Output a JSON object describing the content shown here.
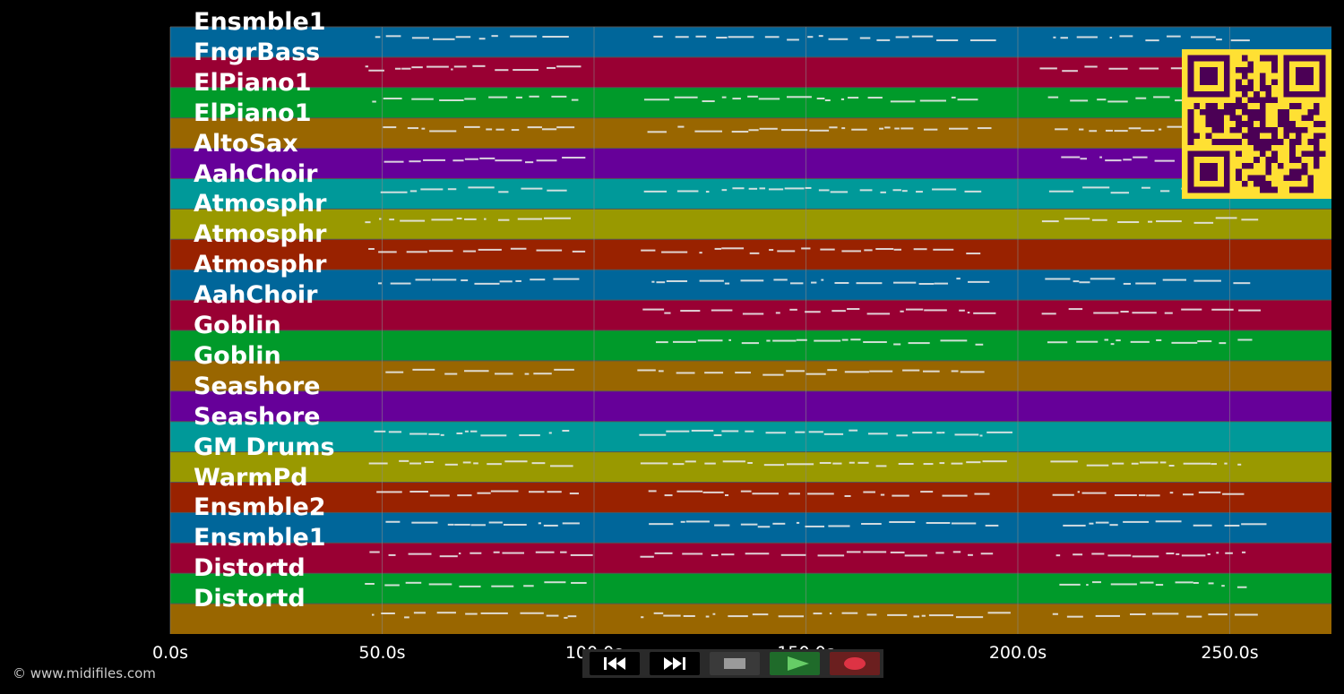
{
  "tracks": [
    {
      "name": "Ensmble1",
      "color": "#00669a"
    },
    {
      "name": "FngrBass",
      "color": "#990033"
    },
    {
      "name": "ElPiano1",
      "color": "#009a2a"
    },
    {
      "name": "ElPiano1",
      "color": "#996600"
    },
    {
      "name": "AltoSax",
      "color": "#660099"
    },
    {
      "name": "AahChoir",
      "color": "#009999"
    },
    {
      "name": "Atmosphr",
      "color": "#999900"
    },
    {
      "name": "Atmosphr",
      "color": "#992200"
    },
    {
      "name": "Atmosphr",
      "color": "#00669a"
    },
    {
      "name": "AahChoir",
      "color": "#990033"
    },
    {
      "name": "Goblin",
      "color": "#009a2a"
    },
    {
      "name": "Goblin",
      "color": "#996600"
    },
    {
      "name": "Seashore",
      "color": "#660099"
    },
    {
      "name": "Seashore",
      "color": "#009999"
    },
    {
      "name": "GM Drums",
      "color": "#999900"
    },
    {
      "name": "WarmPd",
      "color": "#992200"
    },
    {
      "name": "Ensmble2",
      "color": "#00669a"
    },
    {
      "name": "Ensmble1",
      "color": "#990033"
    },
    {
      "name": "Distortd",
      "color": "#009a2a"
    },
    {
      "name": "Distortd",
      "color": "#996600"
    }
  ],
  "ticks": [
    {
      "label": "0.0s",
      "value": 0
    },
    {
      "label": "50.0s",
      "value": 50
    },
    {
      "label": "100.0s",
      "value": 100
    },
    {
      "label": "150.0s",
      "value": 150
    },
    {
      "label": "200.0s",
      "value": 200
    },
    {
      "label": "250.0s",
      "value": 250
    }
  ],
  "duration_s": 274,
  "credit": "© www.midifiles.com",
  "controls": [
    {
      "name": "rewind-button",
      "icon": "rewind-icon",
      "bg": "#000000"
    },
    {
      "name": "fast-forward-button",
      "icon": "fast-forward-icon",
      "bg": "#000000"
    },
    {
      "name": "stop-button",
      "icon": "stop-icon",
      "bg": "#3a3a3a"
    },
    {
      "name": "play-button",
      "icon": "play-icon",
      "bg": "#1f6b2a"
    },
    {
      "name": "record-button",
      "icon": "record-icon",
      "bg": "#6b1f1f"
    }
  ],
  "colors": {
    "grid": "#8a8a8a",
    "note": "#e8e8e8",
    "qr_dark": "#4b0055",
    "qr_light": "#ffe033"
  }
}
